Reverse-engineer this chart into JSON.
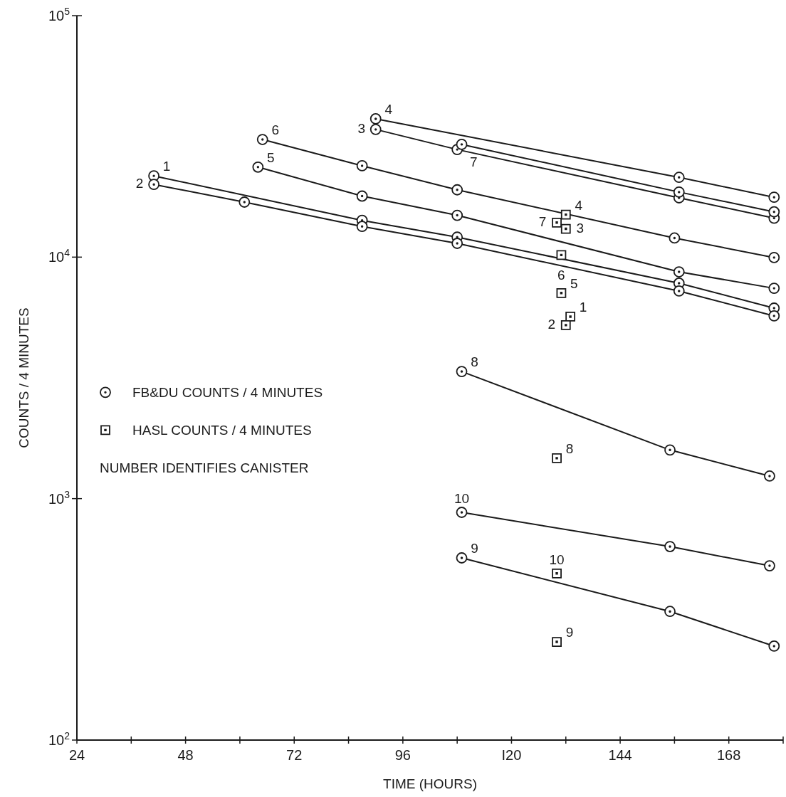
{
  "chart_data": {
    "type": "line",
    "xlabel": "TIME (HOURS)",
    "ylabel": "COUNTS / 4 MINUTES",
    "xlim": [
      24,
      180
    ],
    "ylim": [
      100,
      100000
    ],
    "log": "y",
    "marker": "circle",
    "line_style": "solid",
    "legend": "left",
    "xticks": [
      24,
      {
        "value": 36,
        "label": null
      },
      48,
      {
        "value": 60,
        "label": null
      },
      72,
      {
        "value": 84,
        "label": null
      },
      96,
      {
        "value": 108,
        "label": null
      },
      {
        "value": 120,
        "label": "I20"
      },
      {
        "value": 132,
        "label": null
      },
      144,
      {
        "value": 156,
        "label": null
      },
      168,
      {
        "value": 180,
        "label": null
      }
    ],
    "yticks": [
      {
        "value": 100,
        "label": "10$^{2}$"
      },
      {
        "value": 1000,
        "label": "10$^{3}$"
      },
      {
        "value": 10000,
        "label": "10$^{4}$"
      },
      {
        "value": 100000,
        "label": "10$^{5}$"
      }
    ],
    "annotations": [
      "NUMBER IDENTIFIES CANISTER",
      {
        "text": "1",
        "x": 41,
        "y": 21700
      },
      {
        "text": "2",
        "x": 41,
        "y": 20000
      },
      {
        "text": "3",
        "x": 90,
        "y": 33800
      },
      {
        "text": "4",
        "x": 90,
        "y": 37400
      },
      {
        "text": "5",
        "x": 64,
        "y": 23600
      },
      {
        "text": "6",
        "x": 65,
        "y": 30700
      },
      {
        "text": "7",
        "x": 109,
        "y": 29300
      },
      {
        "text": "8",
        "x": 109,
        "y": 3360
      },
      {
        "text": "9",
        "x": 109,
        "y": 568
      },
      {
        "text": "10",
        "x": 109,
        "y": 877
      },
      {
        "text": "4",
        "x": 132,
        "y": 15000
      },
      {
        "text": "7",
        "x": 130,
        "y": 13900
      },
      {
        "text": "3",
        "x": 132,
        "y": 13100
      },
      {
        "text": "6",
        "x": 131,
        "y": 10200
      },
      {
        "text": "5",
        "x": 131,
        "y": 7100
      },
      {
        "text": "1",
        "x": 133,
        "y": 5670
      },
      {
        "text": "2",
        "x": 132,
        "y": 5230
      },
      {
        "text": "8",
        "x": 130,
        "y": 1470
      },
      {
        "text": "10",
        "x": 130,
        "y": 490
      },
      {
        "text": "9",
        "x": 130,
        "y": 255
      }
    ],
    "series": [
      {
        "name": "FB&DU COUNTS / 4 MINUTES",
        "color": "#1a1a1a",
        "x": [
          41,
          87,
          108,
          157,
          178,
          null,
          41,
          61,
          87,
          108,
          157,
          178,
          null,
          90,
          108,
          157,
          178,
          null,
          90,
          157,
          178,
          null,
          64,
          87,
          108,
          157,
          178,
          null,
          65,
          87,
          108,
          156,
          178,
          null,
          109,
          157,
          178,
          null,
          109,
          155,
          177,
          null,
          109,
          155,
          178,
          null,
          109,
          155,
          177
        ],
        "values": [
          21700,
          14200,
          12100,
          7800,
          6150,
          null,
          20000,
          16900,
          13400,
          11400,
          7240,
          5710,
          null,
          33800,
          27900,
          17600,
          14500,
          null,
          37400,
          21400,
          17700,
          null,
          23600,
          17900,
          14900,
          8690,
          7430,
          null,
          30700,
          23900,
          19000,
          12000,
          9960,
          null,
          29300,
          18600,
          15400,
          null,
          3360,
          1590,
          1240,
          null,
          568,
          341,
          245,
          null,
          877,
          633,
          527
        ]
      },
      {
        "name": "HASL COUNTS / 4 MINUTES",
        "type": "scatter",
        "marker": "square",
        "color": "#1a1a1a",
        "x": [
          132,
          130,
          132,
          131,
          131,
          133,
          132,
          130,
          130,
          130
        ],
        "values": [
          15000,
          13900,
          13100,
          10200,
          7100,
          5670,
          5230,
          1470,
          490,
          255
        ]
      }
    ]
  }
}
